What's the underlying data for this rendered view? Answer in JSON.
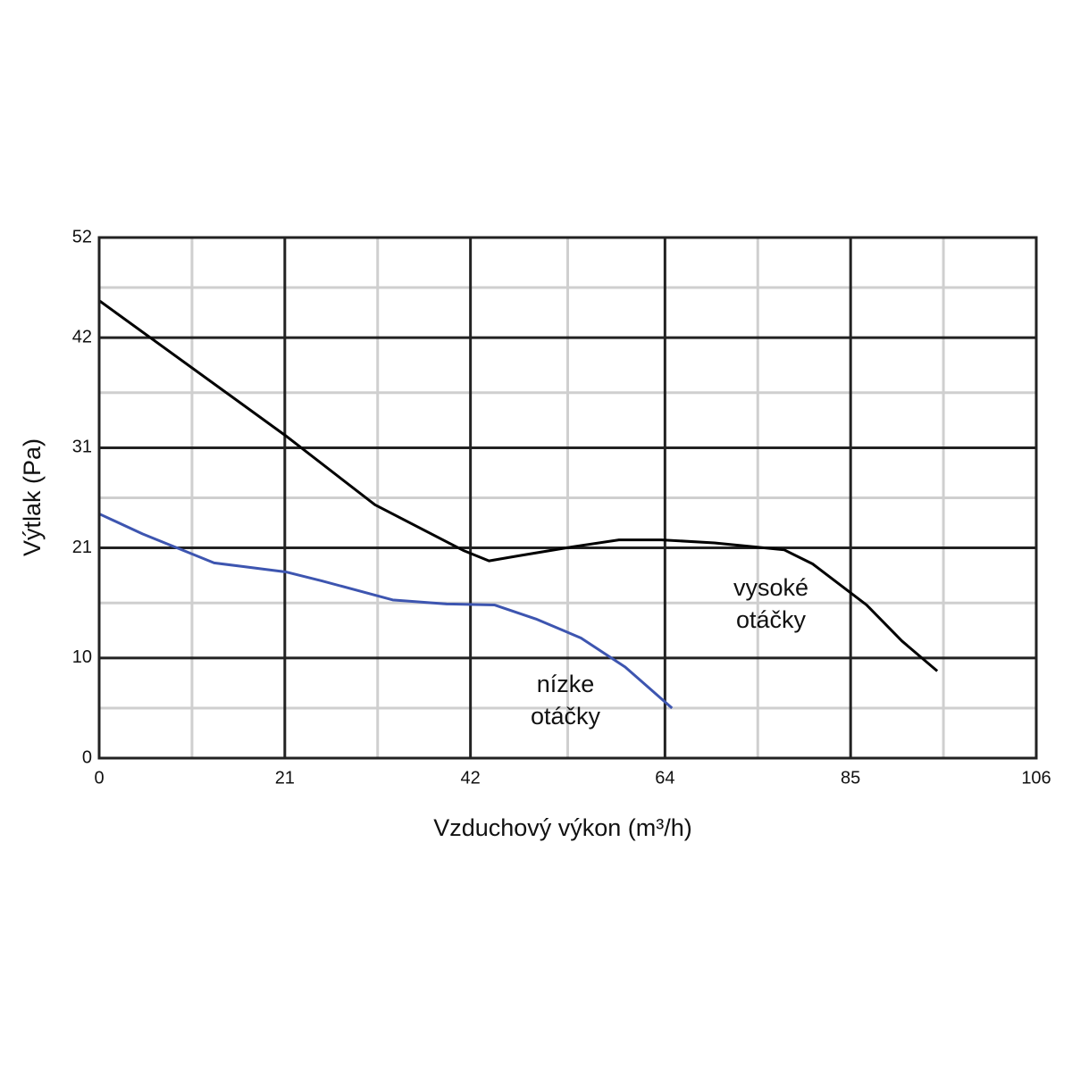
{
  "chart_data": {
    "type": "line",
    "xlabel": "Vzduchový výkon (m³/h)",
    "ylabel": "Výtlak (Pa)",
    "xlim": [
      0,
      106
    ],
    "xticks": [
      0,
      21,
      42,
      64,
      85,
      106
    ],
    "ylim": [
      0,
      52
    ],
    "yticks": [
      0,
      10,
      21,
      31,
      42,
      52
    ],
    "grid": true,
    "series": [
      {
        "color": "#000000",
        "x": [
          0,
          21.1,
          31.2,
          41.3,
          44.1,
          47.4,
          53.5,
          58.8,
          63.6,
          69.6,
          77.5,
          80.7,
          86.8,
          90.8,
          94.8
        ],
        "values": [
          45.7,
          32.2,
          25.3,
          20.7,
          19.7,
          20.2,
          21.1,
          21.8,
          21.8,
          21.5,
          20.8,
          19.4,
          15.3,
          11.7,
          8.7
        ]
      },
      {
        "color": "#3d55b0",
        "x": [
          0,
          4.9,
          13.0,
          21.1,
          25.2,
          33.2,
          39.3,
          44.7,
          49.4,
          54.5,
          59.5,
          64.8
        ],
        "values": [
          24.4,
          22.4,
          19.5,
          18.6,
          17.7,
          15.8,
          15.4,
          15.3,
          13.9,
          12.0,
          9.1,
          5.0
        ]
      }
    ],
    "annotations": [
      [
        "vysoké",
        "otáčky"
      ],
      [
        "nízke",
        "otáčky"
      ]
    ]
  }
}
